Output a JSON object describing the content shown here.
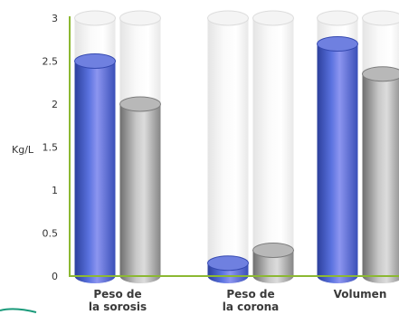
{
  "chart_data": {
    "type": "bar",
    "title": "",
    "xlabel": "",
    "ylabel": "Kg/L",
    "ylim": [
      0,
      3
    ],
    "yticks": [
      "0",
      "0.5",
      "1",
      "1.5",
      "2",
      "2.5",
      "3"
    ],
    "categories": [
      [
        "Peso de",
        "la sorosis"
      ],
      [
        "Peso de",
        "la corona"
      ],
      [
        "Volumen"
      ]
    ],
    "series": [
      {
        "values": [
          2.5,
          0.15,
          2.7
        ],
        "color": "#3f57c6"
      },
      {
        "values": [
          2.0,
          0.3,
          2.35
        ],
        "color": "#9a9a9a"
      }
    ],
    "axis_color": "#8cb832",
    "grid": false,
    "legend": "none"
  }
}
